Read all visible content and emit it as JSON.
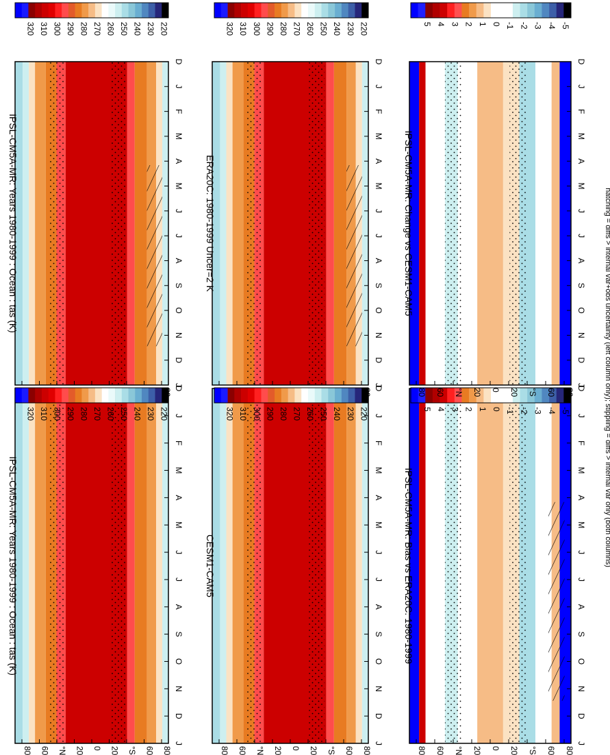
{
  "footer_note": "hatching = diffs > internal var+obs uncertainty (left column only); stippling = diffs > internal var only (both columns)",
  "colors": {
    "abs_scale": [
      "#0000ff",
      "#1a1aff",
      "#8b0000",
      "#b00000",
      "#cc0000",
      "#e00000",
      "#ff2020",
      "#ff4c4c",
      "#e35b2a",
      "#e87b22",
      "#f09a4a",
      "#f6bc86",
      "#fbe2c3",
      "#ffffff",
      "#eafafa",
      "#cdeff0",
      "#aadde6",
      "#8ac7d8",
      "#6aaed1",
      "#5087c0",
      "#3d5fa8",
      "#26267a",
      "#000000"
    ],
    "diff_scale": [
      "#0000ff",
      "#1f1fff",
      "#8b0000",
      "#b00000",
      "#cc0000",
      "#ff2020",
      "#ff5050",
      "#e87b22",
      "#f09a4a",
      "#f6bc86",
      "#fbe2c3",
      "#ffffff",
      "#ffffff",
      "#ffffff",
      "#cdeff0",
      "#aadde6",
      "#8ac7d8",
      "#6aaed1",
      "#5087c0",
      "#3d5fa8",
      "#26267a",
      "#000000"
    ]
  },
  "chart_data": [
    {
      "type": "heatmap",
      "title": "IPSL-CM5A-MR: Years 1980-1999 : Ocean : tas (K)",
      "x": [
        "D",
        "J",
        "F",
        "M",
        "A",
        "M",
        "J",
        "J",
        "A",
        "S",
        "O",
        "N",
        "D",
        "J"
      ],
      "y": [
        "80",
        "60",
        "°N",
        "20",
        "0",
        "20",
        "°S",
        "60",
        "80"
      ],
      "colorbar_ticks": [
        "320",
        "310",
        "300",
        "290",
        "280",
        "270",
        "260",
        "250",
        "240",
        "230",
        "220"
      ],
      "overlay": "stippling and hatching"
    },
    {
      "type": "heatmap",
      "title": "IPSL-CM5A-MR: Years 1980-1999 : Ocean : tas (K)",
      "x": [
        "D",
        "J",
        "F",
        "M",
        "A",
        "M",
        "J",
        "J",
        "A",
        "S",
        "O",
        "N",
        "D",
        "J"
      ],
      "y": [
        "80",
        "60",
        "°N",
        "20",
        "0",
        "20",
        "°S",
        "60",
        "80"
      ],
      "colorbar_ticks": [
        "320",
        "310",
        "300",
        "290",
        "280",
        "270",
        "260",
        "250",
        "240",
        "230",
        "220"
      ],
      "overlay": "stippling"
    },
    {
      "type": "heatmap",
      "title": "ERA20C: 1980-1999 Uncer=2 K",
      "x": [
        "D",
        "J",
        "F",
        "M",
        "A",
        "M",
        "J",
        "J",
        "A",
        "S",
        "O",
        "N",
        "D",
        "J"
      ],
      "y": [
        "80",
        "60",
        "°N",
        "20",
        "0",
        "20",
        "°S",
        "60",
        "80"
      ],
      "colorbar_ticks": [
        "320",
        "310",
        "300",
        "290",
        "280",
        "270",
        "260",
        "250",
        "240",
        "230",
        "220"
      ],
      "overlay": "stippling and hatching"
    },
    {
      "type": "heatmap",
      "title": "CESM1-CAM5",
      "x": [
        "D",
        "J",
        "F",
        "M",
        "A",
        "M",
        "J",
        "J",
        "A",
        "S",
        "O",
        "N",
        "D",
        "J"
      ],
      "y": [
        "80",
        "60",
        "°N",
        "20",
        "0",
        "20",
        "°S",
        "60",
        "80"
      ],
      "colorbar_ticks": [
        "320",
        "310",
        "300",
        "290",
        "280",
        "270",
        "260",
        "250",
        "240",
        "230",
        "220"
      ],
      "overlay": "stippling"
    },
    {
      "type": "heatmap",
      "title": "IPSL-CM5A-MR: Bias vs ERA20C: 1980-1999",
      "x": [
        "D",
        "J",
        "F",
        "M",
        "A",
        "M",
        "J",
        "J",
        "A",
        "S",
        "O",
        "N",
        "D",
        "J"
      ],
      "y": [
        "80",
        "60",
        "°N",
        "20",
        "0",
        "20",
        "°S",
        "60",
        "80"
      ],
      "colorbar_ticks": [
        "5",
        "4",
        "3",
        "2",
        "1",
        "0",
        "-1",
        "-2",
        "-3",
        "-4",
        "-5"
      ],
      "overlay": "stippling and hatching"
    },
    {
      "type": "heatmap",
      "title": "IPSL-CM5A-MR: Change vs CESM1-CAM5",
      "x": [
        "D",
        "J",
        "F",
        "M",
        "A",
        "M",
        "J",
        "J",
        "A",
        "S",
        "O",
        "N",
        "D",
        "J"
      ],
      "y": [
        "80",
        "60",
        "°N",
        "20",
        "0",
        "20",
        "°S",
        "60",
        "80"
      ],
      "colorbar_ticks": [
        "5",
        "4",
        "3",
        "2",
        "1",
        "0",
        "-1",
        "-2",
        "-3",
        "-4",
        "-5"
      ],
      "overlay": "stippling"
    }
  ]
}
